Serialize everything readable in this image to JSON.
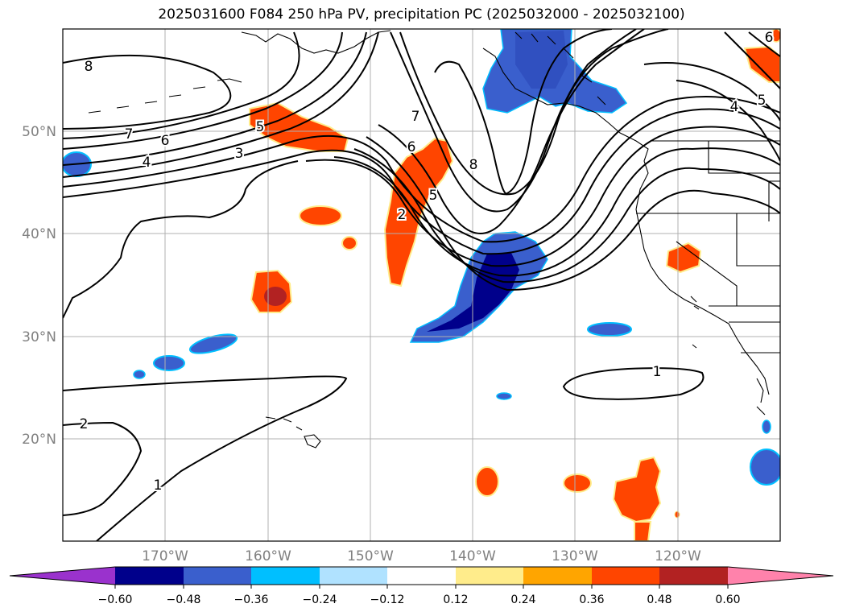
{
  "title": "2025031600 F084 250 hPa PV, precipitation PC (2025032000 - 2025032100)",
  "latitude_labels": [
    "50°N",
    "40°N",
    "30°N",
    "20°N"
  ],
  "longitude_labels": [
    "170°W",
    "160°W",
    "150°W",
    "140°W",
    "130°W",
    "120°W"
  ],
  "contour_labels": [
    "8",
    "7",
    "6",
    "4",
    "3",
    "5",
    "2",
    "7",
    "6",
    "5",
    "8",
    "4",
    "5",
    "6",
    "2",
    "1",
    "1"
  ],
  "colorbar": {
    "tick_labels": [
      "−0.60",
      "−0.48",
      "−0.36",
      "−0.24",
      "−0.12",
      "0.12",
      "0.24",
      "0.36",
      "0.48",
      "0.60"
    ],
    "colors": [
      "#9a32cd",
      "#00008b",
      "#3a5fcd",
      "#00bfff",
      "#b0e2ff",
      "#ffffff",
      "#ffec8b",
      "#ffa500",
      "#ff4500",
      "#b22222",
      "#ff82ab"
    ]
  },
  "field_colors": {
    "positive_light": "#ffec8b",
    "positive_mid": "#ffa500",
    "positive_strong": "#ff4500",
    "positive_max": "#b22222",
    "negative_light": "#00bfff",
    "negative_mid": "#3a5fcd",
    "negative_strong": "#00008b"
  }
}
